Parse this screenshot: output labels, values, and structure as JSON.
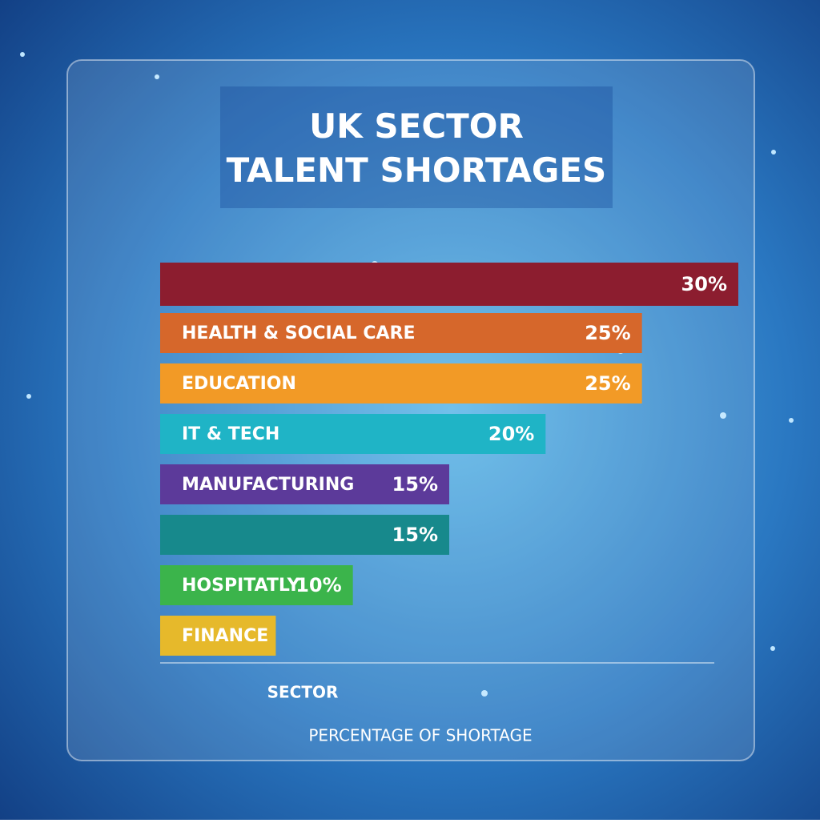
{
  "chart_data": {
    "type": "bar",
    "orientation": "horizontal",
    "title": "UK SECTOR\nTALENT SHORTAGES",
    "x_label": "SECTOR",
    "y_label": "PERCENTAGE OF SHORTAGE",
    "categories": [
      null,
      "HEALTH & SOCIAL CARE",
      "EDUCATION",
      "IT & TECH",
      "MANUFACTURING",
      null,
      "HOSPITATLY",
      "FINANCE"
    ],
    "values": [
      30,
      25,
      25,
      20,
      15,
      15,
      10,
      6
    ],
    "value_labels": [
      "30%",
      "25%",
      "25%",
      "20%",
      "15%",
      "15%",
      "10%",
      null
    ],
    "colors": [
      "#8c1d2f",
      "#d6672b",
      "#f29a26",
      "#1fb4c6",
      "#5c3a9a",
      "#17898c",
      "#3bb44b",
      "#e6b92b"
    ]
  }
}
